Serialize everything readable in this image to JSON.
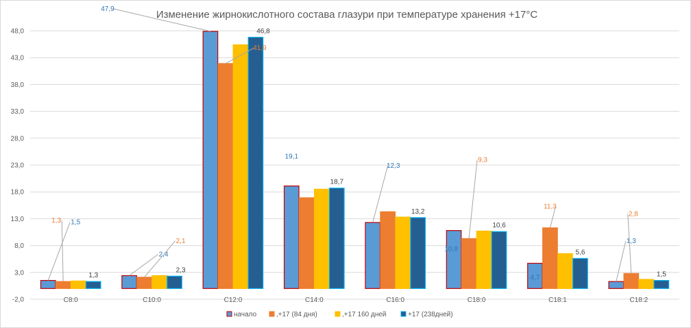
{
  "chart_data": {
    "type": "bar",
    "title": "Изменение жирнокислотного состава глазури при температуре хранения +17°С",
    "categories": [
      "C8:0",
      "C10:0",
      "C12:0",
      "C14:0",
      "C16:0",
      "C18:0",
      "C18:1",
      "C18:2"
    ],
    "yticks": [
      "-2,0",
      "3,0",
      "8,0",
      "13,0",
      "18,0",
      "23,0",
      "28,0",
      "33,0",
      "38,0",
      "43,0",
      "48,0"
    ],
    "ylim": [
      -2,
      48
    ],
    "grid": true,
    "legend_position": "bottom",
    "series": [
      {
        "name": "начало",
        "color": "#5b9bd5",
        "border": "#c00000",
        "values": [
          1.5,
          2.4,
          47.9,
          19.1,
          12.3,
          10.8,
          4.7,
          1.3
        ],
        "labels": [
          "1,5",
          "2,4",
          "47,9",
          "19,1",
          "12,3",
          "10,8",
          "4,7",
          "1,3"
        ],
        "label_color": "#2e75b6"
      },
      {
        "name": ",+17 (84 дня)",
        "color": "#ed7d31",
        "border": "#ed7d31",
        "values": [
          1.3,
          2.1,
          41.9,
          16.9,
          14.3,
          9.3,
          11.3,
          2.8
        ],
        "labels": [
          "1,3",
          "2,1",
          "41,9",
          "",
          "",
          "9,3",
          "11,3",
          "2,8"
        ],
        "label_color": "#ed7d31"
      },
      {
        "name": ",+17 160 дней",
        "color": "#ffc000",
        "border": "#ffc000",
        "values": [
          1.4,
          2.4,
          45.4,
          18.5,
          13.3,
          10.7,
          6.5,
          1.7
        ],
        "labels": [
          "",
          "",
          "",
          "",
          "",
          "",
          "",
          ""
        ],
        "label_color": "#595959"
      },
      {
        "name": "+17  (238дней)",
        "color": "#255e91",
        "border": "#00b0f0",
        "values": [
          1.3,
          2.3,
          46.8,
          18.7,
          13.2,
          10.6,
          5.6,
          1.5
        ],
        "labels": [
          "1,3",
          "2,3",
          "46,8",
          "18,7",
          "13,2",
          "10,6",
          "5,6",
          "1,5"
        ],
        "label_color": "#404040"
      }
    ]
  }
}
